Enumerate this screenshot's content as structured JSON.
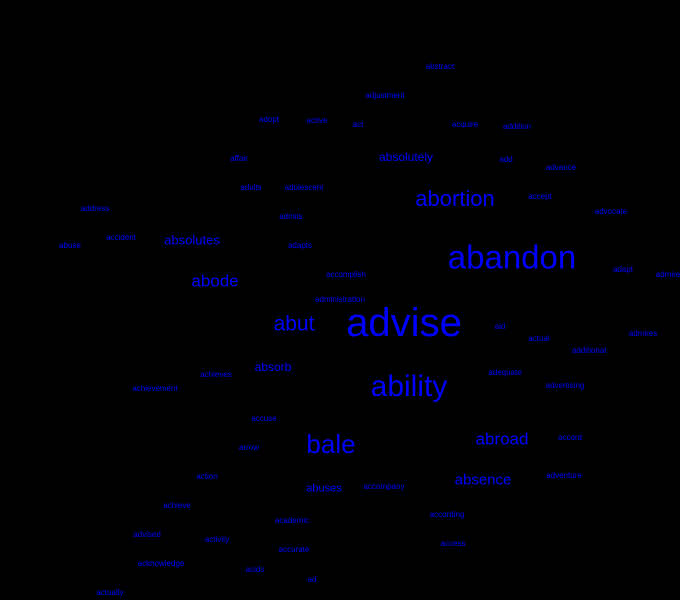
{
  "colors": {
    "background": "#000000",
    "word": "#0000ff"
  },
  "words": [
    {
      "text": "advise",
      "weight": 40
    },
    {
      "text": "abandon",
      "weight": 33
    },
    {
      "text": "ability",
      "weight": 30
    },
    {
      "text": "bale",
      "weight": 26
    },
    {
      "text": "abortion",
      "weight": 22
    },
    {
      "text": "abut",
      "weight": 21
    },
    {
      "text": "abode",
      "weight": 17
    },
    {
      "text": "abroad",
      "weight": 17
    },
    {
      "text": "absence",
      "weight": 15
    },
    {
      "text": "absolutes",
      "weight": 13
    },
    {
      "text": "absolutely",
      "weight": 12
    },
    {
      "text": "absorb",
      "weight": 12
    },
    {
      "text": "abuses",
      "weight": 11
    },
    {
      "text": "abstract",
      "weight": 8
    },
    {
      "text": "achieve",
      "weight": 8
    },
    {
      "text": "adjustment",
      "weight": 8
    },
    {
      "text": "adopt",
      "weight": 8
    },
    {
      "text": "active",
      "weight": 8
    },
    {
      "text": "act",
      "weight": 8
    },
    {
      "text": "acquire",
      "weight": 8
    },
    {
      "text": "addition",
      "weight": 8
    },
    {
      "text": "affair",
      "weight": 8
    },
    {
      "text": "add",
      "weight": 8
    },
    {
      "text": "advance",
      "weight": 8
    },
    {
      "text": "adults",
      "weight": 8
    },
    {
      "text": "adolescent",
      "weight": 8
    },
    {
      "text": "accept",
      "weight": 8
    },
    {
      "text": "address",
      "weight": 8
    },
    {
      "text": "advocate",
      "weight": 8
    },
    {
      "text": "admits",
      "weight": 8
    },
    {
      "text": "accident",
      "weight": 8
    },
    {
      "text": "abuse",
      "weight": 8
    },
    {
      "text": "adapts",
      "weight": 8
    },
    {
      "text": "accomplish",
      "weight": 8
    },
    {
      "text": "adapt",
      "weight": 8
    },
    {
      "text": "admire",
      "weight": 8
    },
    {
      "text": "aid",
      "weight": 8
    },
    {
      "text": "actual",
      "weight": 8
    },
    {
      "text": "admires",
      "weight": 8
    },
    {
      "text": "additional",
      "weight": 8
    },
    {
      "text": "achieves",
      "weight": 8
    },
    {
      "text": "adequate",
      "weight": 8
    },
    {
      "text": "achievement",
      "weight": 8
    },
    {
      "text": "advertising",
      "weight": 8
    },
    {
      "text": "accuse",
      "weight": 8
    },
    {
      "text": "accord",
      "weight": 8
    },
    {
      "text": "arrow",
      "weight": 8
    },
    {
      "text": "action",
      "weight": 8
    },
    {
      "text": "adventure",
      "weight": 8
    },
    {
      "text": "accompany",
      "weight": 8
    },
    {
      "text": "advised",
      "weight": 8
    },
    {
      "text": "academic",
      "weight": 8
    },
    {
      "text": "according",
      "weight": 8
    },
    {
      "text": "activity",
      "weight": 8
    },
    {
      "text": "accurate",
      "weight": 8
    },
    {
      "text": "access",
      "weight": 8
    },
    {
      "text": "acknowledge",
      "weight": 8
    },
    {
      "text": "acids",
      "weight": 8
    },
    {
      "text": "ad",
      "weight": 8
    },
    {
      "text": "actually",
      "weight": 8
    },
    {
      "text": "administration",
      "weight": 8
    }
  ]
}
